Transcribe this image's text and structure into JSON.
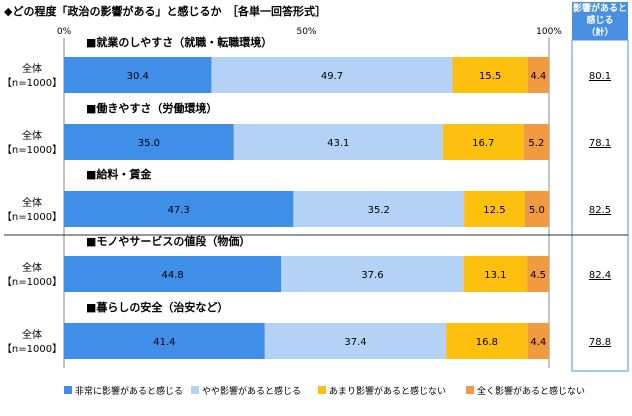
{
  "title": "◆どの程度「政治の影響がある」と感じるか　［各単一回答形式］",
  "total_header": {
    "line1": "影響があると",
    "line2": "感じる",
    "line3": "（計）"
  },
  "colors": {
    "s1": "#3f8ee8",
    "s2": "#b3d2f6",
    "s3": "#fec00f",
    "s4": "#f29a40",
    "border": "#4a90e2"
  },
  "chart_data": {
    "type": "bar",
    "stacked": true,
    "orientation": "horizontal",
    "xlim": [
      0,
      100
    ],
    "tick_labels": [
      "0%",
      "50%",
      "100%"
    ],
    "tick_values": [
      0,
      50,
      100
    ],
    "legend_position": "bottom",
    "legend": [
      "非常に影響があると感じる",
      "やや影響があると感じる",
      "あまり影響があると感じない",
      "全く影響があると感じない"
    ],
    "categories": [
      {
        "title": "■就業のしやすさ（就職・転職環境）",
        "row_line1": "全体",
        "row_line2": "【n=1000】",
        "values": [
          30.4,
          49.7,
          15.5,
          4.4
        ],
        "labels": [
          "30.4",
          "49.7",
          "15.5",
          "4.4"
        ],
        "total": "80.1"
      },
      {
        "title": "■働きやすさ（労働環境）",
        "row_line1": "全体",
        "row_line2": "【n=1000】",
        "values": [
          35.0,
          43.1,
          16.7,
          5.2
        ],
        "labels": [
          "35.0",
          "43.1",
          "16.7",
          "5.2"
        ],
        "total": "78.1"
      },
      {
        "title": "■給料・賃金",
        "row_line1": "全体",
        "row_line2": "【n=1000】",
        "values": [
          47.3,
          35.2,
          12.5,
          5.0
        ],
        "labels": [
          "47.3",
          "35.2",
          "12.5",
          "5.0"
        ],
        "total": "82.5"
      },
      {
        "title": "■モノやサービスの値段（物価）",
        "row_line1": "全体",
        "row_line2": "【n=1000】",
        "values": [
          44.8,
          37.6,
          13.1,
          4.5
        ],
        "labels": [
          "44.8",
          "37.6",
          "13.1",
          "4.5"
        ],
        "total": "82.4"
      },
      {
        "title": "■暮らしの安全（治安など）",
        "row_line1": "全体",
        "row_line2": "【n=1000】",
        "values": [
          41.4,
          37.4,
          16.8,
          4.4
        ],
        "labels": [
          "41.4",
          "37.4",
          "16.8",
          "4.4"
        ],
        "total": "78.8"
      }
    ]
  }
}
